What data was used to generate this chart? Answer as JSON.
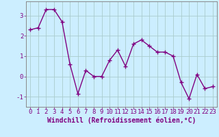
{
  "x": [
    0,
    1,
    2,
    3,
    4,
    5,
    6,
    7,
    8,
    9,
    10,
    11,
    12,
    13,
    14,
    15,
    16,
    17,
    18,
    19,
    20,
    21,
    22,
    23
  ],
  "y": [
    2.3,
    2.4,
    3.3,
    3.3,
    2.7,
    0.6,
    -0.85,
    0.3,
    0.0,
    0.0,
    0.8,
    1.3,
    0.5,
    1.6,
    1.8,
    1.5,
    1.2,
    1.2,
    1.0,
    -0.3,
    -1.1,
    0.1,
    -0.6,
    -0.5
  ],
  "line_color": "#800080",
  "marker": "+",
  "marker_size": 4,
  "linewidth": 1.0,
  "xlabel": "Windchill (Refroidissement éolien,°C)",
  "ylabel_ticks": [
    -1,
    0,
    1,
    2,
    3
  ],
  "ylim": [
    -1.5,
    3.7
  ],
  "xlim": [
    -0.5,
    23.5
  ],
  "xtick_labels": [
    "0",
    "1",
    "2",
    "3",
    "4",
    "5",
    "6",
    "7",
    "8",
    "9",
    "10",
    "11",
    "12",
    "13",
    "14",
    "15",
    "16",
    "17",
    "18",
    "19",
    "20",
    "21",
    "22",
    "23"
  ],
  "background_color": "#cceeff",
  "grid_color": "#aacccc",
  "xlabel_fontsize": 7,
  "tick_fontsize": 6.5,
  "markeredgewidth": 1.0
}
